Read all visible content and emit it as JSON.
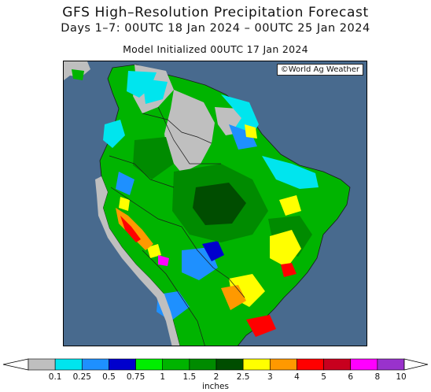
{
  "title": {
    "line1": "GFS High–Resolution Precipitation Forecast",
    "line2": "Days 1–7: 00UTC 18 Jan 2024 – 00UTC 25 Jan 2024",
    "line3": "Model Initialized 00UTC 17 Jan 2024"
  },
  "credit": "©World Ag Weather",
  "legend": {
    "units": "inches",
    "levels": [
      "0.1",
      "0.25",
      "0.5",
      "0.75",
      "1",
      "1.5",
      "2",
      "2.5",
      "3",
      "4",
      "5",
      "6",
      "8",
      "10"
    ],
    "colors": [
      "#bfbfbf",
      "#00e5ee",
      "#1e90ff",
      "#0000cd",
      "#00ee00",
      "#00b400",
      "#008b00",
      "#004d00",
      "#ffff00",
      "#ff9900",
      "#ff0000",
      "#c8001e",
      "#ff00ff",
      "#9932cc"
    ]
  },
  "map_colors": {
    "ocean": "#486a8e",
    "dry": "#bfbfbf",
    "light_blue": "#00e5ee",
    "blue": "#1e90ff",
    "dark_blue": "#0000cd",
    "green": "#00b400",
    "mid_green": "#008b00",
    "dark_green": "#004d00",
    "yellow": "#ffff00",
    "orange": "#ff9900",
    "red": "#ff0000",
    "magenta": "#ff00ff"
  }
}
